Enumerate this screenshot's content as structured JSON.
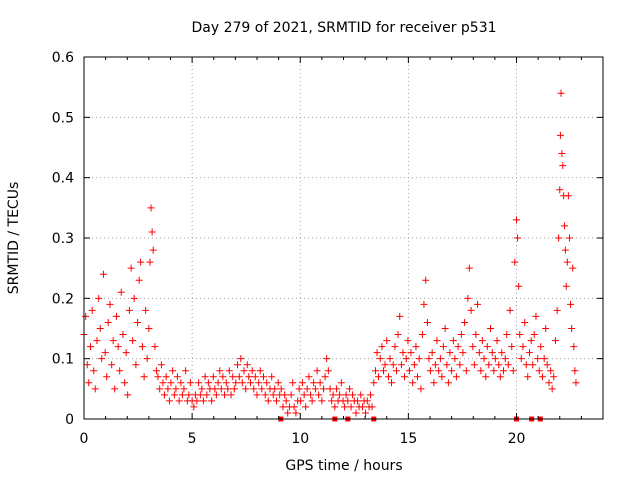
{
  "colors": {
    "series": "#ff0000",
    "axis": "#000000",
    "grid": "#a0a0a0",
    "background": "#ffffff"
  },
  "chart_data": {
    "type": "scatter",
    "title": "Day 279 of 2021, SRMTID for receiver p531",
    "xlabel": "GPS time / hours",
    "ylabel": "SRMTID / TECUs",
    "xlim": [
      0,
      24
    ],
    "ylim": [
      0,
      0.6
    ],
    "grid": true,
    "xticks": [
      0,
      5,
      10,
      15,
      20
    ],
    "xtick_labels": [
      "0",
      "5",
      "10",
      "15",
      "20"
    ],
    "yticks": [
      0,
      0.1,
      0.2,
      0.3,
      0.4,
      0.5,
      0.6
    ],
    "ytick_labels": [
      "0",
      "0.1",
      "0.2",
      "0.3",
      "0.4",
      "0.5",
      "0.6"
    ],
    "marker": "plus",
    "series": [
      {
        "name": "SRMTID",
        "points": [
          [
            0.0,
            0.14
          ],
          [
            0.08,
            0.17
          ],
          [
            0.15,
            0.09
          ],
          [
            0.22,
            0.06
          ],
          [
            0.3,
            0.12
          ],
          [
            0.38,
            0.18
          ],
          [
            0.45,
            0.08
          ],
          [
            0.52,
            0.05
          ],
          [
            0.6,
            0.13
          ],
          [
            0.68,
            0.2
          ],
          [
            0.75,
            0.15
          ],
          [
            0.82,
            0.1
          ],
          [
            0.9,
            0.24
          ],
          [
            0.98,
            0.11
          ],
          [
            1.05,
            0.07
          ],
          [
            1.12,
            0.16
          ],
          [
            1.2,
            0.19
          ],
          [
            1.28,
            0.09
          ],
          [
            1.35,
            0.13
          ],
          [
            1.42,
            0.05
          ],
          [
            1.5,
            0.17
          ],
          [
            1.58,
            0.12
          ],
          [
            1.65,
            0.08
          ],
          [
            1.72,
            0.21
          ],
          [
            1.8,
            0.14
          ],
          [
            1.88,
            0.06
          ],
          [
            1.95,
            0.11
          ],
          [
            2.02,
            0.04
          ],
          [
            2.1,
            0.18
          ],
          [
            2.18,
            0.25
          ],
          [
            2.25,
            0.13
          ],
          [
            2.32,
            0.2
          ],
          [
            2.4,
            0.09
          ],
          [
            2.48,
            0.16
          ],
          [
            2.55,
            0.23
          ],
          [
            2.62,
            0.26
          ],
          [
            2.7,
            0.12
          ],
          [
            2.78,
            0.07
          ],
          [
            2.85,
            0.18
          ],
          [
            2.92,
            0.1
          ],
          [
            3.0,
            0.15
          ],
          [
            3.05,
            0.26
          ],
          [
            3.1,
            0.35
          ],
          [
            3.15,
            0.31
          ],
          [
            3.2,
            0.28
          ],
          [
            3.28,
            0.12
          ],
          [
            3.35,
            0.08
          ],
          [
            3.42,
            0.07
          ],
          [
            3.5,
            0.05
          ],
          [
            3.58,
            0.09
          ],
          [
            3.65,
            0.06
          ],
          [
            3.72,
            0.04
          ],
          [
            3.8,
            0.07
          ],
          [
            3.88,
            0.05
          ],
          [
            3.95,
            0.03
          ],
          [
            4.02,
            0.06
          ],
          [
            4.1,
            0.08
          ],
          [
            4.18,
            0.04
          ],
          [
            4.25,
            0.05
          ],
          [
            4.32,
            0.07
          ],
          [
            4.4,
            0.03
          ],
          [
            4.48,
            0.06
          ],
          [
            4.55,
            0.04
          ],
          [
            4.62,
            0.05
          ],
          [
            4.7,
            0.08
          ],
          [
            4.78,
            0.03
          ],
          [
            4.85,
            0.04
          ],
          [
            4.92,
            0.06
          ],
          [
            5.0,
            0.03
          ],
          [
            5.08,
            0.02
          ],
          [
            5.15,
            0.04
          ],
          [
            5.22,
            0.03
          ],
          [
            5.3,
            0.06
          ],
          [
            5.38,
            0.04
          ],
          [
            5.45,
            0.05
          ],
          [
            5.52,
            0.03
          ],
          [
            5.6,
            0.07
          ],
          [
            5.68,
            0.04
          ],
          [
            5.75,
            0.06
          ],
          [
            5.82,
            0.05
          ],
          [
            5.9,
            0.03
          ],
          [
            5.98,
            0.07
          ],
          [
            6.05,
            0.05
          ],
          [
            6.12,
            0.04
          ],
          [
            6.2,
            0.06
          ],
          [
            6.28,
            0.08
          ],
          [
            6.35,
            0.05
          ],
          [
            6.42,
            0.07
          ],
          [
            6.5,
            0.04
          ],
          [
            6.58,
            0.06
          ],
          [
            6.65,
            0.05
          ],
          [
            6.72,
            0.08
          ],
          [
            6.8,
            0.04
          ],
          [
            6.88,
            0.07
          ],
          [
            6.95,
            0.05
          ],
          [
            7.02,
            0.06
          ],
          [
            7.1,
            0.09
          ],
          [
            7.18,
            0.07
          ],
          [
            7.25,
            0.1
          ],
          [
            7.32,
            0.06
          ],
          [
            7.4,
            0.08
          ],
          [
            7.48,
            0.05
          ],
          [
            7.55,
            0.09
          ],
          [
            7.62,
            0.07
          ],
          [
            7.7,
            0.06
          ],
          [
            7.78,
            0.08
          ],
          [
            7.85,
            0.05
          ],
          [
            7.92,
            0.07
          ],
          [
            8.0,
            0.04
          ],
          [
            8.08,
            0.06
          ],
          [
            8.15,
            0.08
          ],
          [
            8.22,
            0.05
          ],
          [
            8.3,
            0.07
          ],
          [
            8.38,
            0.04
          ],
          [
            8.45,
            0.06
          ],
          [
            8.52,
            0.03
          ],
          [
            8.6,
            0.05
          ],
          [
            8.68,
            0.07
          ],
          [
            8.75,
            0.04
          ],
          [
            8.82,
            0.05
          ],
          [
            8.9,
            0.03
          ],
          [
            8.98,
            0.06
          ],
          [
            9.05,
            0.04
          ],
          [
            9.12,
            0.05
          ],
          [
            9.2,
            0.02
          ],
          [
            9.28,
            0.04
          ],
          [
            9.35,
            0.03
          ],
          [
            9.42,
            0.01
          ],
          [
            9.5,
            0.02
          ],
          [
            9.58,
            0.04
          ],
          [
            9.65,
            0.06
          ],
          [
            9.72,
            0.02
          ],
          [
            9.8,
            0.01
          ],
          [
            9.88,
            0.03
          ],
          [
            9.95,
            0.05
          ],
          [
            10.02,
            0.03
          ],
          [
            10.1,
            0.06
          ],
          [
            10.18,
            0.04
          ],
          [
            10.25,
            0.02
          ],
          [
            10.32,
            0.05
          ],
          [
            10.4,
            0.07
          ],
          [
            10.48,
            0.04
          ],
          [
            10.55,
            0.03
          ],
          [
            10.62,
            0.06
          ],
          [
            10.7,
            0.05
          ],
          [
            10.78,
            0.08
          ],
          [
            10.85,
            0.04
          ],
          [
            10.92,
            0.06
          ],
          [
            11.0,
            0.03
          ],
          [
            11.08,
            0.05
          ],
          [
            11.15,
            0.07
          ],
          [
            11.22,
            0.1
          ],
          [
            11.3,
            0.08
          ],
          [
            11.38,
            0.05
          ],
          [
            11.45,
            0.03
          ],
          [
            11.52,
            0.04
          ],
          [
            11.6,
            0.02
          ],
          [
            11.68,
            0.05
          ],
          [
            11.75,
            0.03
          ],
          [
            11.82,
            0.04
          ],
          [
            11.9,
            0.06
          ],
          [
            11.98,
            0.03
          ],
          [
            12.05,
            0.02
          ],
          [
            12.12,
            0.04
          ],
          [
            12.2,
            0.03
          ],
          [
            12.28,
            0.05
          ],
          [
            12.35,
            0.02
          ],
          [
            12.42,
            0.04
          ],
          [
            12.5,
            0.03
          ],
          [
            12.58,
            0.01
          ],
          [
            12.65,
            0.03
          ],
          [
            12.72,
            0.02
          ],
          [
            12.8,
            0.04
          ],
          [
            12.88,
            0.02
          ],
          [
            12.95,
            0.03
          ],
          [
            13.02,
            0.01
          ],
          [
            13.1,
            0.03
          ],
          [
            13.18,
            0.02
          ],
          [
            13.25,
            0.04
          ],
          [
            13.32,
            0.02
          ],
          [
            13.4,
            0.06
          ],
          [
            13.48,
            0.08
          ],
          [
            13.55,
            0.11
          ],
          [
            13.62,
            0.07
          ],
          [
            13.7,
            0.1
          ],
          [
            13.78,
            0.12
          ],
          [
            13.85,
            0.08
          ],
          [
            13.92,
            0.09
          ],
          [
            14.0,
            0.13
          ],
          [
            14.08,
            0.07
          ],
          [
            14.15,
            0.1
          ],
          [
            14.22,
            0.06
          ],
          [
            14.3,
            0.09
          ],
          [
            14.38,
            0.12
          ],
          [
            14.45,
            0.08
          ],
          [
            14.52,
            0.14
          ],
          [
            14.6,
            0.17
          ],
          [
            14.68,
            0.09
          ],
          [
            14.75,
            0.11
          ],
          [
            14.82,
            0.07
          ],
          [
            14.9,
            0.1
          ],
          [
            14.98,
            0.13
          ],
          [
            15.05,
            0.08
          ],
          [
            15.12,
            0.11
          ],
          [
            15.2,
            0.06
          ],
          [
            15.28,
            0.09
          ],
          [
            15.35,
            0.12
          ],
          [
            15.42,
            0.07
          ],
          [
            15.5,
            0.1
          ],
          [
            15.58,
            0.05
          ],
          [
            15.65,
            0.14
          ],
          [
            15.72,
            0.19
          ],
          [
            15.8,
            0.23
          ],
          [
            15.88,
            0.16
          ],
          [
            15.95,
            0.1
          ],
          [
            16.02,
            0.08
          ],
          [
            16.1,
            0.11
          ],
          [
            16.18,
            0.06
          ],
          [
            16.25,
            0.09
          ],
          [
            16.32,
            0.13
          ],
          [
            16.4,
            0.08
          ],
          [
            16.48,
            0.1
          ],
          [
            16.55,
            0.07
          ],
          [
            16.62,
            0.12
          ],
          [
            16.7,
            0.15
          ],
          [
            16.78,
            0.09
          ],
          [
            16.85,
            0.06
          ],
          [
            16.92,
            0.11
          ],
          [
            17.0,
            0.08
          ],
          [
            17.08,
            0.13
          ],
          [
            17.15,
            0.1
          ],
          [
            17.22,
            0.07
          ],
          [
            17.3,
            0.12
          ],
          [
            17.38,
            0.09
          ],
          [
            17.45,
            0.14
          ],
          [
            17.52,
            0.11
          ],
          [
            17.6,
            0.16
          ],
          [
            17.68,
            0.08
          ],
          [
            17.75,
            0.2
          ],
          [
            17.82,
            0.25
          ],
          [
            17.9,
            0.18
          ],
          [
            17.98,
            0.12
          ],
          [
            18.05,
            0.09
          ],
          [
            18.12,
            0.14
          ],
          [
            18.2,
            0.19
          ],
          [
            18.28,
            0.11
          ],
          [
            18.35,
            0.08
          ],
          [
            18.42,
            0.13
          ],
          [
            18.5,
            0.1
          ],
          [
            18.58,
            0.07
          ],
          [
            18.65,
            0.12
          ],
          [
            18.72,
            0.09
          ],
          [
            18.8,
            0.15
          ],
          [
            18.88,
            0.11
          ],
          [
            18.95,
            0.08
          ],
          [
            19.02,
            0.1
          ],
          [
            19.1,
            0.13
          ],
          [
            19.18,
            0.09
          ],
          [
            19.25,
            0.07
          ],
          [
            19.32,
            0.11
          ],
          [
            19.4,
            0.08
          ],
          [
            19.48,
            0.1
          ],
          [
            19.55,
            0.14
          ],
          [
            19.62,
            0.09
          ],
          [
            19.7,
            0.18
          ],
          [
            19.78,
            0.12
          ],
          [
            19.85,
            0.08
          ],
          [
            19.92,
            0.26
          ],
          [
            20.0,
            0.33
          ],
          [
            20.05,
            0.3
          ],
          [
            20.1,
            0.22
          ],
          [
            20.15,
            0.14
          ],
          [
            20.22,
            0.1
          ],
          [
            20.3,
            0.12
          ],
          [
            20.38,
            0.16
          ],
          [
            20.45,
            0.09
          ],
          [
            20.52,
            0.07
          ],
          [
            20.6,
            0.11
          ],
          [
            20.68,
            0.13
          ],
          [
            20.75,
            0.09
          ],
          [
            20.82,
            0.14
          ],
          [
            20.9,
            0.17
          ],
          [
            20.98,
            0.1
          ],
          [
            21.05,
            0.08
          ],
          [
            21.12,
            0.12
          ],
          [
            21.2,
            0.07
          ],
          [
            21.28,
            0.1
          ],
          [
            21.35,
            0.15
          ],
          [
            21.42,
            0.09
          ],
          [
            21.5,
            0.06
          ],
          [
            21.58,
            0.08
          ],
          [
            21.65,
            0.05
          ],
          [
            21.72,
            0.07
          ],
          [
            21.8,
            0.13
          ],
          [
            21.88,
            0.18
          ],
          [
            21.95,
            0.3
          ],
          [
            22.0,
            0.38
          ],
          [
            22.03,
            0.47
          ],
          [
            22.06,
            0.54
          ],
          [
            22.1,
            0.44
          ],
          [
            22.14,
            0.42
          ],
          [
            22.18,
            0.37
          ],
          [
            22.22,
            0.32
          ],
          [
            22.26,
            0.28
          ],
          [
            22.3,
            0.22
          ],
          [
            22.35,
            0.26
          ],
          [
            22.4,
            0.37
          ],
          [
            22.45,
            0.3
          ],
          [
            22.5,
            0.19
          ],
          [
            22.55,
            0.15
          ],
          [
            22.6,
            0.25
          ],
          [
            22.65,
            0.12
          ],
          [
            22.7,
            0.08
          ],
          [
            22.75,
            0.06
          ]
        ]
      }
    ],
    "baseline_markers_x": [
      9.1,
      11.6,
      12.2,
      13.4,
      20.0,
      20.7,
      21.1
    ]
  }
}
